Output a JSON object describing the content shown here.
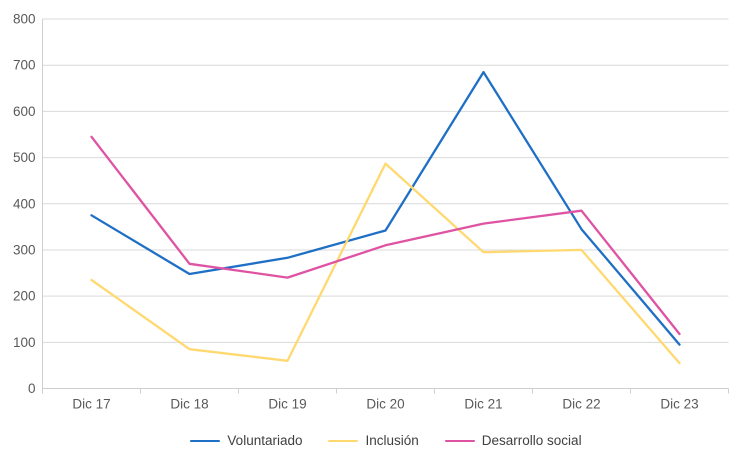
{
  "chart_data": {
    "type": "line",
    "title": "",
    "xlabel": "",
    "ylabel": "",
    "categories": [
      "Dic 17",
      "Dic 18",
      "Dic 19",
      "Dic 20",
      "Dic 21",
      "Dic 22",
      "Dic 23"
    ],
    "series": [
      {
        "name": "Voluntariado",
        "color": "#1F6FC5",
        "values": [
          375,
          248,
          283,
          342,
          685,
          345,
          95
        ]
      },
      {
        "name": "Inclusión",
        "color": "#FFD970",
        "values": [
          235,
          85,
          60,
          487,
          295,
          300,
          55
        ]
      },
      {
        "name": "Desarrollo social",
        "color": "#DF53A3",
        "values": [
          545,
          270,
          240,
          310,
          357,
          385,
          118
        ]
      }
    ],
    "ylim": [
      0,
      800
    ],
    "ytick_step": 100,
    "ytick_labels": [
      "0",
      "100",
      "200",
      "300",
      "400",
      "500",
      "600",
      "700",
      "800"
    ],
    "grid": true,
    "legend_position": "bottom"
  },
  "colors": {
    "gridline": "#D9D9D9",
    "axis_line": "#CFCFCF",
    "tick_label": "#595959",
    "legend_text": "#404040",
    "background": "#FFFFFF"
  }
}
